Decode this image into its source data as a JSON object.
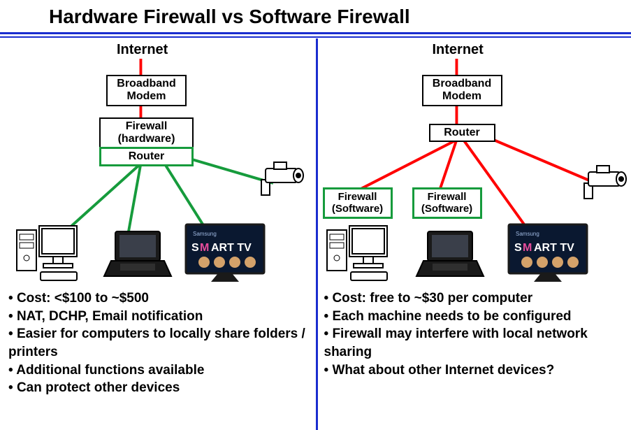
{
  "title": "Hardware Firewall  vs Software Firewall",
  "colors": {
    "blue": "#1a2dcf",
    "red": "#ff0000",
    "green": "#169b3c",
    "black": "#000000"
  },
  "left": {
    "header": "Internet",
    "nodes": {
      "modem": "Broadband\nModem",
      "firewall": "Firewall\n(hardware)",
      "router": "Router"
    },
    "bullets": [
      "Cost:  <$100 to ~$500",
      "NAT, DCHP, Email notification",
      "Easier for computers to locally share folders / printers",
      "Additional functions available",
      "Can protect other devices"
    ],
    "line_color": "#169b3c"
  },
  "right": {
    "header": "Internet",
    "nodes": {
      "modem": "Broadband\nModem",
      "router": "Router",
      "fw1": "Firewall\n(Software)",
      "fw2": "Firewall\n(Software)"
    },
    "bullets": [
      "Cost: free to ~$30 per computer",
      "Each machine needs to be configured",
      "Firewall may interfere with local network sharing",
      "What about other Internet devices?"
    ],
    "line_color": "#ff0000"
  },
  "devices": {
    "desktop_label": "desktop-pc",
    "laptop_label": "laptop",
    "tv_label": "smart-tv",
    "camera_label": "camera",
    "tv_text_top": "Samsung",
    "tv_text_main": "SMART TV"
  }
}
